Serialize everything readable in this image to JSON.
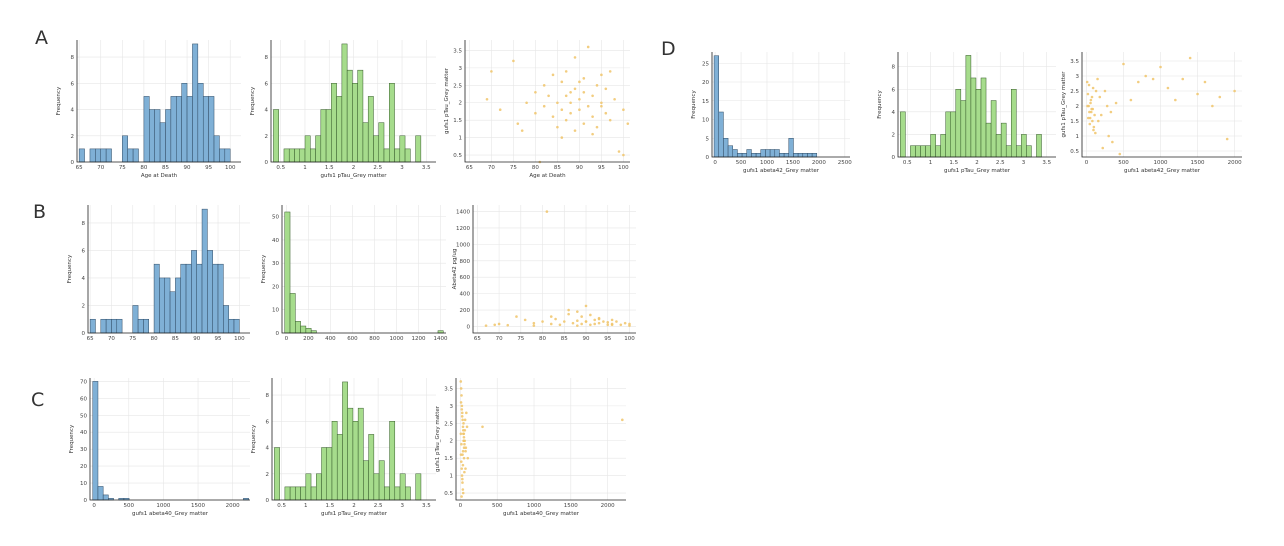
{
  "panels": [
    {
      "label": "A",
      "x": 35,
      "y": 44
    },
    {
      "label": "B",
      "x": 33,
      "y": 218
    },
    {
      "label": "C",
      "x": 31,
      "y": 406
    },
    {
      "label": "D",
      "x": 661,
      "y": 55
    }
  ],
  "colors": {
    "blue": "#7fb0d6",
    "blue_edge": "#2f4a63",
    "green": "#a6dc8c",
    "green_edge": "#355a2a",
    "orange": "#f0c46a"
  },
  "chart_data": [
    {
      "id": "A1",
      "type": "bar",
      "color": "blue",
      "xlabel": "Age at Death",
      "ylabel": "Frequency",
      "xlim": [
        64.5,
        102.5
      ],
      "ylim": [
        0,
        9.3
      ],
      "xticks": [
        65,
        70,
        75,
        80,
        85,
        90,
        95,
        100
      ],
      "yticks": [
        0,
        2,
        4,
        6,
        8
      ],
      "bin_start": 65,
      "bin_width": 1.25,
      "values": [
        1,
        0,
        1,
        1,
        1,
        1,
        0,
        0,
        2,
        1,
        1,
        0,
        5,
        4,
        4,
        3,
        4,
        5,
        5,
        6,
        5,
        9,
        6,
        5,
        5,
        2,
        1,
        1,
        0
      ]
    },
    {
      "id": "A2",
      "type": "bar",
      "color": "green",
      "xlabel": "gufs1 pTau_Grey matter",
      "ylabel": "Frequency",
      "xlim": [
        0.3,
        3.7
      ],
      "ylim": [
        0,
        9.3
      ],
      "xticks": [
        0.5,
        1.0,
        1.5,
        2.0,
        2.5,
        3.0,
        3.5
      ],
      "yticks": [
        0,
        2,
        4,
        6,
        8
      ],
      "bin_start": 0.35,
      "bin_width": 0.1085,
      "values": [
        4,
        0,
        1,
        1,
        1,
        1,
        2,
        1,
        2,
        4,
        4,
        6,
        5,
        9,
        7,
        6,
        7,
        3,
        5,
        2,
        3,
        1,
        6,
        1,
        2,
        1,
        0,
        2
      ]
    },
    {
      "id": "A3",
      "type": "scatter",
      "color": "orange",
      "xlabel": "Age at Death",
      "ylabel": "gufs1 pTau_Grey matter",
      "xlim": [
        64,
        101.5
      ],
      "ylim": [
        0.3,
        3.8
      ],
      "xticks": [
        65,
        70,
        75,
        80,
        85,
        90,
        95,
        100
      ],
      "yticks": [
        0.5,
        1.0,
        1.5,
        2.0,
        2.5,
        3.0,
        3.5
      ],
      "x": [
        69,
        70,
        72,
        75,
        76,
        77,
        78,
        80,
        80,
        81,
        82,
        82,
        83,
        84,
        84,
        85,
        85,
        86,
        86,
        87,
        87,
        87,
        88,
        88,
        89,
        89,
        90,
        90,
        90,
        91,
        91,
        92,
        92,
        93,
        93,
        94,
        94,
        95,
        95,
        96,
        96,
        97,
        97,
        98,
        99,
        100,
        100,
        101,
        89,
        91,
        93,
        95,
        86,
        88
      ],
      "y": [
        2.1,
        2.9,
        1.8,
        3.2,
        1.4,
        1.2,
        2.0,
        2.3,
        1.7,
        0.3,
        2.5,
        1.9,
        2.2,
        1.6,
        2.8,
        2.0,
        1.3,
        2.6,
        1.8,
        2.2,
        1.5,
        2.9,
        2.0,
        1.7,
        2.4,
        1.2,
        2.1,
        1.8,
        2.6,
        2.3,
        1.4,
        3.6,
        1.9,
        2.2,
        1.6,
        2.5,
        1.3,
        2.0,
        2.8,
        1.7,
        2.4,
        2.9,
        1.5,
        2.1,
        0.6,
        0.5,
        1.8,
        1.4,
        3.3,
        2.7,
        1.1,
        1.9,
        1.0,
        2.3
      ]
    },
    {
      "id": "B1",
      "type": "bar",
      "color": "blue",
      "xlabel": "",
      "ylabel": "Frequency",
      "xlim": [
        64.5,
        102.5
      ],
      "ylim": [
        0,
        9.3
      ],
      "xticks": [
        65,
        70,
        75,
        80,
        85,
        90,
        95,
        100
      ],
      "yticks": [
        0,
        2,
        4,
        6,
        8
      ],
      "bin_start": 65,
      "bin_width": 1.25,
      "values": [
        1,
        0,
        1,
        1,
        1,
        1,
        0,
        0,
        2,
        1,
        1,
        0,
        5,
        4,
        4,
        3,
        4,
        5,
        5,
        6,
        5,
        9,
        6,
        5,
        5,
        2,
        1,
        1,
        0
      ]
    },
    {
      "id": "B2",
      "type": "bar",
      "color": "green",
      "xlabel": "",
      "ylabel": "Frequency",
      "xlim": [
        -40,
        1450
      ],
      "ylim": [
        0,
        55
      ],
      "xticks": [
        0,
        200,
        400,
        600,
        800,
        1000,
        1200,
        1400
      ],
      "yticks": [
        0,
        10,
        20,
        30,
        40,
        50
      ],
      "bin_start": -15,
      "bin_width": 48,
      "values": [
        52,
        17,
        5,
        3,
        2,
        1,
        0,
        0,
        0,
        0,
        0,
        0,
        0,
        0,
        0,
        0,
        0,
        0,
        0,
        0,
        0,
        0,
        0,
        0,
        0,
        0,
        0,
        0,
        0,
        1
      ]
    },
    {
      "id": "B3",
      "type": "scatter",
      "color": "orange",
      "xlabel": "",
      "ylabel": "Abeta42 pg/ug",
      "xlim": [
        64,
        101.5
      ],
      "ylim": [
        -80,
        1480
      ],
      "xticks": [
        65,
        70,
        75,
        80,
        85,
        90,
        95,
        100
      ],
      "yticks": [
        0,
        200,
        400,
        600,
        800,
        1000,
        1200,
        1400
      ],
      "x": [
        67,
        69,
        72,
        74,
        76,
        78,
        80,
        81,
        82,
        83,
        84,
        85,
        86,
        87,
        88,
        88,
        89,
        89,
        90,
        90,
        91,
        91,
        92,
        92,
        93,
        93,
        94,
        95,
        95,
        96,
        96,
        97,
        98,
        99,
        100,
        100,
        86,
        88,
        82,
        90,
        93,
        96,
        70,
        78
      ],
      "y": [
        10,
        20,
        15,
        120,
        80,
        40,
        60,
        1400,
        30,
        90,
        20,
        60,
        150,
        40,
        180,
        70,
        30,
        120,
        250,
        60,
        20,
        140,
        80,
        30,
        100,
        40,
        60,
        50,
        20,
        80,
        30,
        60,
        20,
        40,
        10,
        30,
        200,
        10,
        120,
        60,
        90,
        20,
        30,
        10
      ]
    },
    {
      "id": "C1",
      "type": "bar",
      "color": "blue",
      "xlabel": "gufs1 abeta40_Grey matter",
      "ylabel": "Frequency",
      "xlim": [
        -60,
        2250
      ],
      "ylim": [
        0,
        72
      ],
      "xticks": [
        0,
        500,
        1000,
        1500,
        2000
      ],
      "yticks": [
        0,
        10,
        20,
        30,
        40,
        50,
        60,
        70
      ],
      "bin_start": -20,
      "bin_width": 75,
      "values": [
        70,
        8,
        3,
        1,
        0,
        1,
        1,
        0,
        0,
        0,
        0,
        0,
        0,
        0,
        0,
        0,
        0,
        0,
        0,
        0,
        0,
        0,
        0,
        0,
        0,
        0,
        0,
        0,
        0,
        1
      ]
    },
    {
      "id": "C2",
      "type": "bar",
      "color": "green",
      "xlabel": "gufs1 pTau_Grey matter",
      "ylabel": "Frequency",
      "xlim": [
        0.3,
        3.7
      ],
      "ylim": [
        0,
        9.3
      ],
      "xticks": [
        0.5,
        1.0,
        1.5,
        2.0,
        2.5,
        3.0,
        3.5
      ],
      "yticks": [
        0,
        2,
        4,
        6,
        8
      ],
      "bin_start": 0.35,
      "bin_width": 0.1085,
      "values": [
        4,
        0,
        1,
        1,
        1,
        1,
        2,
        1,
        2,
        4,
        4,
        6,
        5,
        9,
        7,
        6,
        7,
        3,
        5,
        2,
        3,
        1,
        6,
        1,
        2,
        1,
        0,
        2
      ]
    },
    {
      "id": "C3",
      "type": "scatter",
      "color": "orange",
      "xlabel": "gufs1 abeta40_Grey matter",
      "ylabel": "gufs1 pTau_Grey matter",
      "xlim": [
        -60,
        2250
      ],
      "ylim": [
        0.3,
        3.8
      ],
      "xticks": [
        0,
        500,
        1000,
        1500,
        2000
      ],
      "yticks": [
        0.5,
        1.0,
        1.5,
        2.0,
        2.5,
        3.0,
        3.5
      ],
      "x": [
        5,
        10,
        15,
        20,
        25,
        30,
        35,
        40,
        45,
        50,
        8,
        12,
        18,
        22,
        28,
        33,
        38,
        42,
        48,
        55,
        60,
        70,
        80,
        90,
        100,
        6,
        14,
        24,
        34,
        44,
        54,
        64,
        74,
        300,
        2200,
        9,
        19,
        29,
        39,
        49,
        59,
        69,
        16,
        26,
        36,
        46
      ],
      "y": [
        3.7,
        3.5,
        3.3,
        3.0,
        2.8,
        2.6,
        2.4,
        2.2,
        2.0,
        1.8,
        1.6,
        1.4,
        1.2,
        1.0,
        0.8,
        0.6,
        0.5,
        2.5,
        2.1,
        1.9,
        2.3,
        1.7,
        2.8,
        2.4,
        1.5,
        2.2,
        1.9,
        2.7,
        1.3,
        2.0,
        1.1,
        2.6,
        1.8,
        2.4,
        2.6,
        3.1,
        2.9,
        1.6,
        2.3,
        1.5,
        2.0,
        1.2,
        0.4,
        0.9,
        1.7,
        2.2
      ]
    },
    {
      "id": "D1",
      "type": "bar",
      "color": "blue",
      "xlabel": "gufs1 abeta42_Grey matter",
      "ylabel": "Frequency",
      "xlim": [
        -60,
        2600
      ],
      "ylim": [
        0,
        28
      ],
      "xticks": [
        0,
        500,
        1000,
        1500,
        2000,
        2500
      ],
      "yticks": [
        0,
        5,
        10,
        15,
        20,
        25
      ],
      "bin_start": -20,
      "bin_width": 90,
      "values": [
        27,
        12,
        5,
        3,
        2,
        1,
        1,
        2,
        1,
        1,
        2,
        2,
        2,
        2,
        1,
        1,
        5,
        1,
        1,
        1,
        1,
        1,
        0,
        0,
        0,
        0,
        0
      ]
    },
    {
      "id": "D2",
      "type": "bar",
      "color": "green",
      "xlabel": "gufs1 pTau_Grey matter",
      "ylabel": "Frequency",
      "xlim": [
        0.3,
        3.7
      ],
      "ylim": [
        0,
        9.3
      ],
      "xticks": [
        0.5,
        1.0,
        1.5,
        2.0,
        2.5,
        3.0,
        3.5
      ],
      "yticks": [
        0,
        2,
        4,
        6,
        8
      ],
      "bin_start": 0.35,
      "bin_width": 0.1085,
      "values": [
        4,
        0,
        1,
        1,
        1,
        1,
        2,
        1,
        2,
        4,
        4,
        6,
        5,
        9,
        7,
        6,
        7,
        3,
        5,
        2,
        3,
        1,
        6,
        1,
        2,
        1,
        0,
        2
      ]
    },
    {
      "id": "D3",
      "type": "scatter",
      "color": "orange",
      "xlabel": "gufs1 abeta42_Grey matter",
      "ylabel": "gufs1 pTau_Grey matter",
      "xlim": [
        -60,
        2100
      ],
      "ylim": [
        0.3,
        3.8
      ],
      "xticks": [
        0,
        500,
        1000,
        1500,
        2000
      ],
      "yticks": [
        0.5,
        1.0,
        1.5,
        2.0,
        2.5,
        3.0,
        3.5
      ],
      "x": [
        10,
        20,
        30,
        40,
        50,
        60,
        70,
        80,
        90,
        100,
        120,
        150,
        180,
        200,
        250,
        300,
        350,
        400,
        450,
        500,
        600,
        700,
        800,
        900,
        1000,
        1100,
        1200,
        1300,
        1400,
        1500,
        1600,
        1700,
        1800,
        1900,
        2000,
        15,
        25,
        35,
        45,
        55,
        65,
        75,
        85,
        95,
        110,
        130,
        160,
        220,
        280,
        330
      ],
      "y": [
        2.8,
        2.4,
        2.0,
        1.8,
        1.6,
        2.2,
        1.9,
        1.5,
        2.6,
        1.3,
        1.1,
        2.9,
        2.3,
        1.7,
        2.5,
        1.0,
        0.8,
        2.1,
        0.4,
        3.4,
        2.2,
        2.8,
        3.0,
        2.9,
        3.3,
        2.6,
        2.2,
        2.9,
        3.6,
        2.4,
        2.8,
        2.0,
        2.3,
        0.9,
        2.5,
        2.0,
        1.6,
        2.7,
        1.4,
        2.1,
        1.8,
        2.3,
        1.9,
        1.2,
        1.7,
        2.5,
        1.5,
        0.6,
        2.0,
        1.8
      ]
    }
  ]
}
